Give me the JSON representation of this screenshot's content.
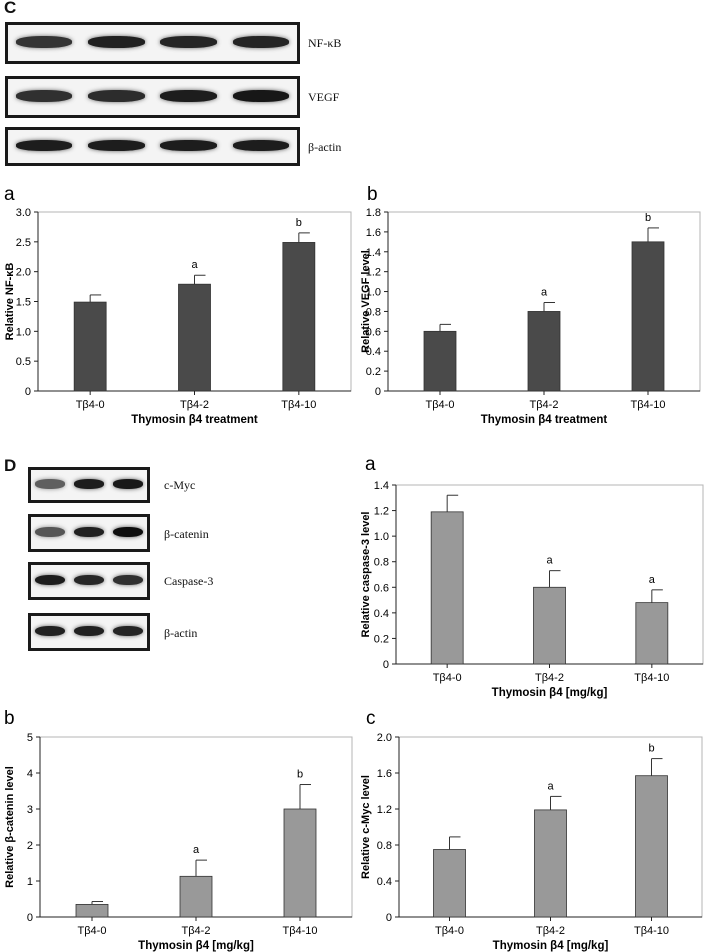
{
  "figure": {
    "section_c": "C",
    "section_d": "D",
    "blots_c": [
      {
        "label": "NF-κB",
        "intensities": [
          0.78,
          0.88,
          0.86,
          0.86
        ]
      },
      {
        "label": "VEGF",
        "intensities": [
          0.8,
          0.82,
          0.9,
          0.93
        ]
      },
      {
        "label": "β-actin",
        "intensities": [
          0.9,
          0.9,
          0.9,
          0.9
        ]
      }
    ],
    "blots_d": [
      {
        "label": "c-Myc",
        "intensities": [
          0.55,
          0.9,
          0.92
        ]
      },
      {
        "label": "β-catenin",
        "intensities": [
          0.6,
          0.88,
          0.98
        ]
      },
      {
        "label": "Caspase-3",
        "intensities": [
          0.9,
          0.85,
          0.8
        ]
      },
      {
        "label": "β-actin",
        "intensities": [
          0.88,
          0.88,
          0.86
        ]
      }
    ]
  },
  "chart_data": [
    {
      "id": "c_a",
      "panel_letter": "a",
      "type": "bar",
      "categories": [
        "Tβ4-0",
        "Tβ4-2",
        "Tβ4-10"
      ],
      "values": [
        1.49,
        1.79,
        2.49
      ],
      "errors": [
        0.12,
        0.15,
        0.16
      ],
      "annotations": [
        "",
        "a",
        "b"
      ],
      "xlabel": "Thymosin β4 treatment",
      "ylabel": "Relative NF-κB",
      "ylim": [
        0,
        3.0
      ],
      "yticks": [
        "0",
        "0.5",
        "1.0",
        "1.5",
        "2.0",
        "2.5",
        "3.0"
      ],
      "color": "#4a4a4a"
    },
    {
      "id": "c_b",
      "panel_letter": "b",
      "type": "bar",
      "categories": [
        "Tβ4-0",
        "Tβ4-2",
        "Tβ4-10"
      ],
      "values": [
        0.6,
        0.8,
        1.5
      ],
      "errors": [
        0.07,
        0.09,
        0.14
      ],
      "annotations": [
        "",
        "a",
        "b"
      ],
      "xlabel": "Thymosin β4 treatment",
      "ylabel": "Relative VEGF level",
      "ylim": [
        0,
        1.8
      ],
      "yticks": [
        "0",
        "0.2",
        "0.4",
        "0.6",
        "0.8",
        "1.0",
        "1.2",
        "1.4",
        "1.6",
        "1.8"
      ],
      "color": "#4a4a4a"
    },
    {
      "id": "d_a",
      "panel_letter": "a",
      "type": "bar",
      "categories": [
        "Tβ4-0",
        "Tβ4-2",
        "Tβ4-10"
      ],
      "values": [
        1.19,
        0.6,
        0.48
      ],
      "errors": [
        0.13,
        0.13,
        0.1
      ],
      "annotations": [
        "",
        "a",
        "a"
      ],
      "xlabel": "Thymosin β4 [mg/kg]",
      "ylabel": "Relative caspase-3 level",
      "ylim": [
        0,
        1.4
      ],
      "yticks": [
        "0",
        "0.2",
        "0.4",
        "0.6",
        "0.8",
        "1.0",
        "1.2",
        "1.4"
      ],
      "color": "#999999"
    },
    {
      "id": "d_b",
      "panel_letter": "b",
      "type": "bar",
      "categories": [
        "Tβ4-0",
        "Tβ4-2",
        "Tβ4-10"
      ],
      "values": [
        0.35,
        1.13,
        3.0
      ],
      "errors": [
        0.08,
        0.45,
        0.68
      ],
      "annotations": [
        "",
        "a",
        "b"
      ],
      "xlabel": "Thymosin β4 [mg/kg]",
      "ylabel": "Relative β-catenin level",
      "ylim": [
        0,
        5
      ],
      "yticks": [
        "0",
        "1",
        "2",
        "3",
        "4",
        "5"
      ],
      "color": "#999999"
    },
    {
      "id": "d_c",
      "panel_letter": "c",
      "type": "bar",
      "categories": [
        "Tβ4-0",
        "Tβ4-2",
        "Tβ4-10"
      ],
      "values": [
        0.75,
        1.19,
        1.57
      ],
      "errors": [
        0.14,
        0.15,
        0.19
      ],
      "annotations": [
        "",
        "a",
        "b"
      ],
      "xlabel": "Thymosin β4 [mg/kg]",
      "ylabel": "Relative c-Myc level",
      "ylim": [
        0,
        2.0
      ],
      "yticks": [
        "0",
        "0.4",
        "0.8",
        "1.2",
        "1.6",
        "2.0"
      ],
      "color": "#999999"
    }
  ]
}
